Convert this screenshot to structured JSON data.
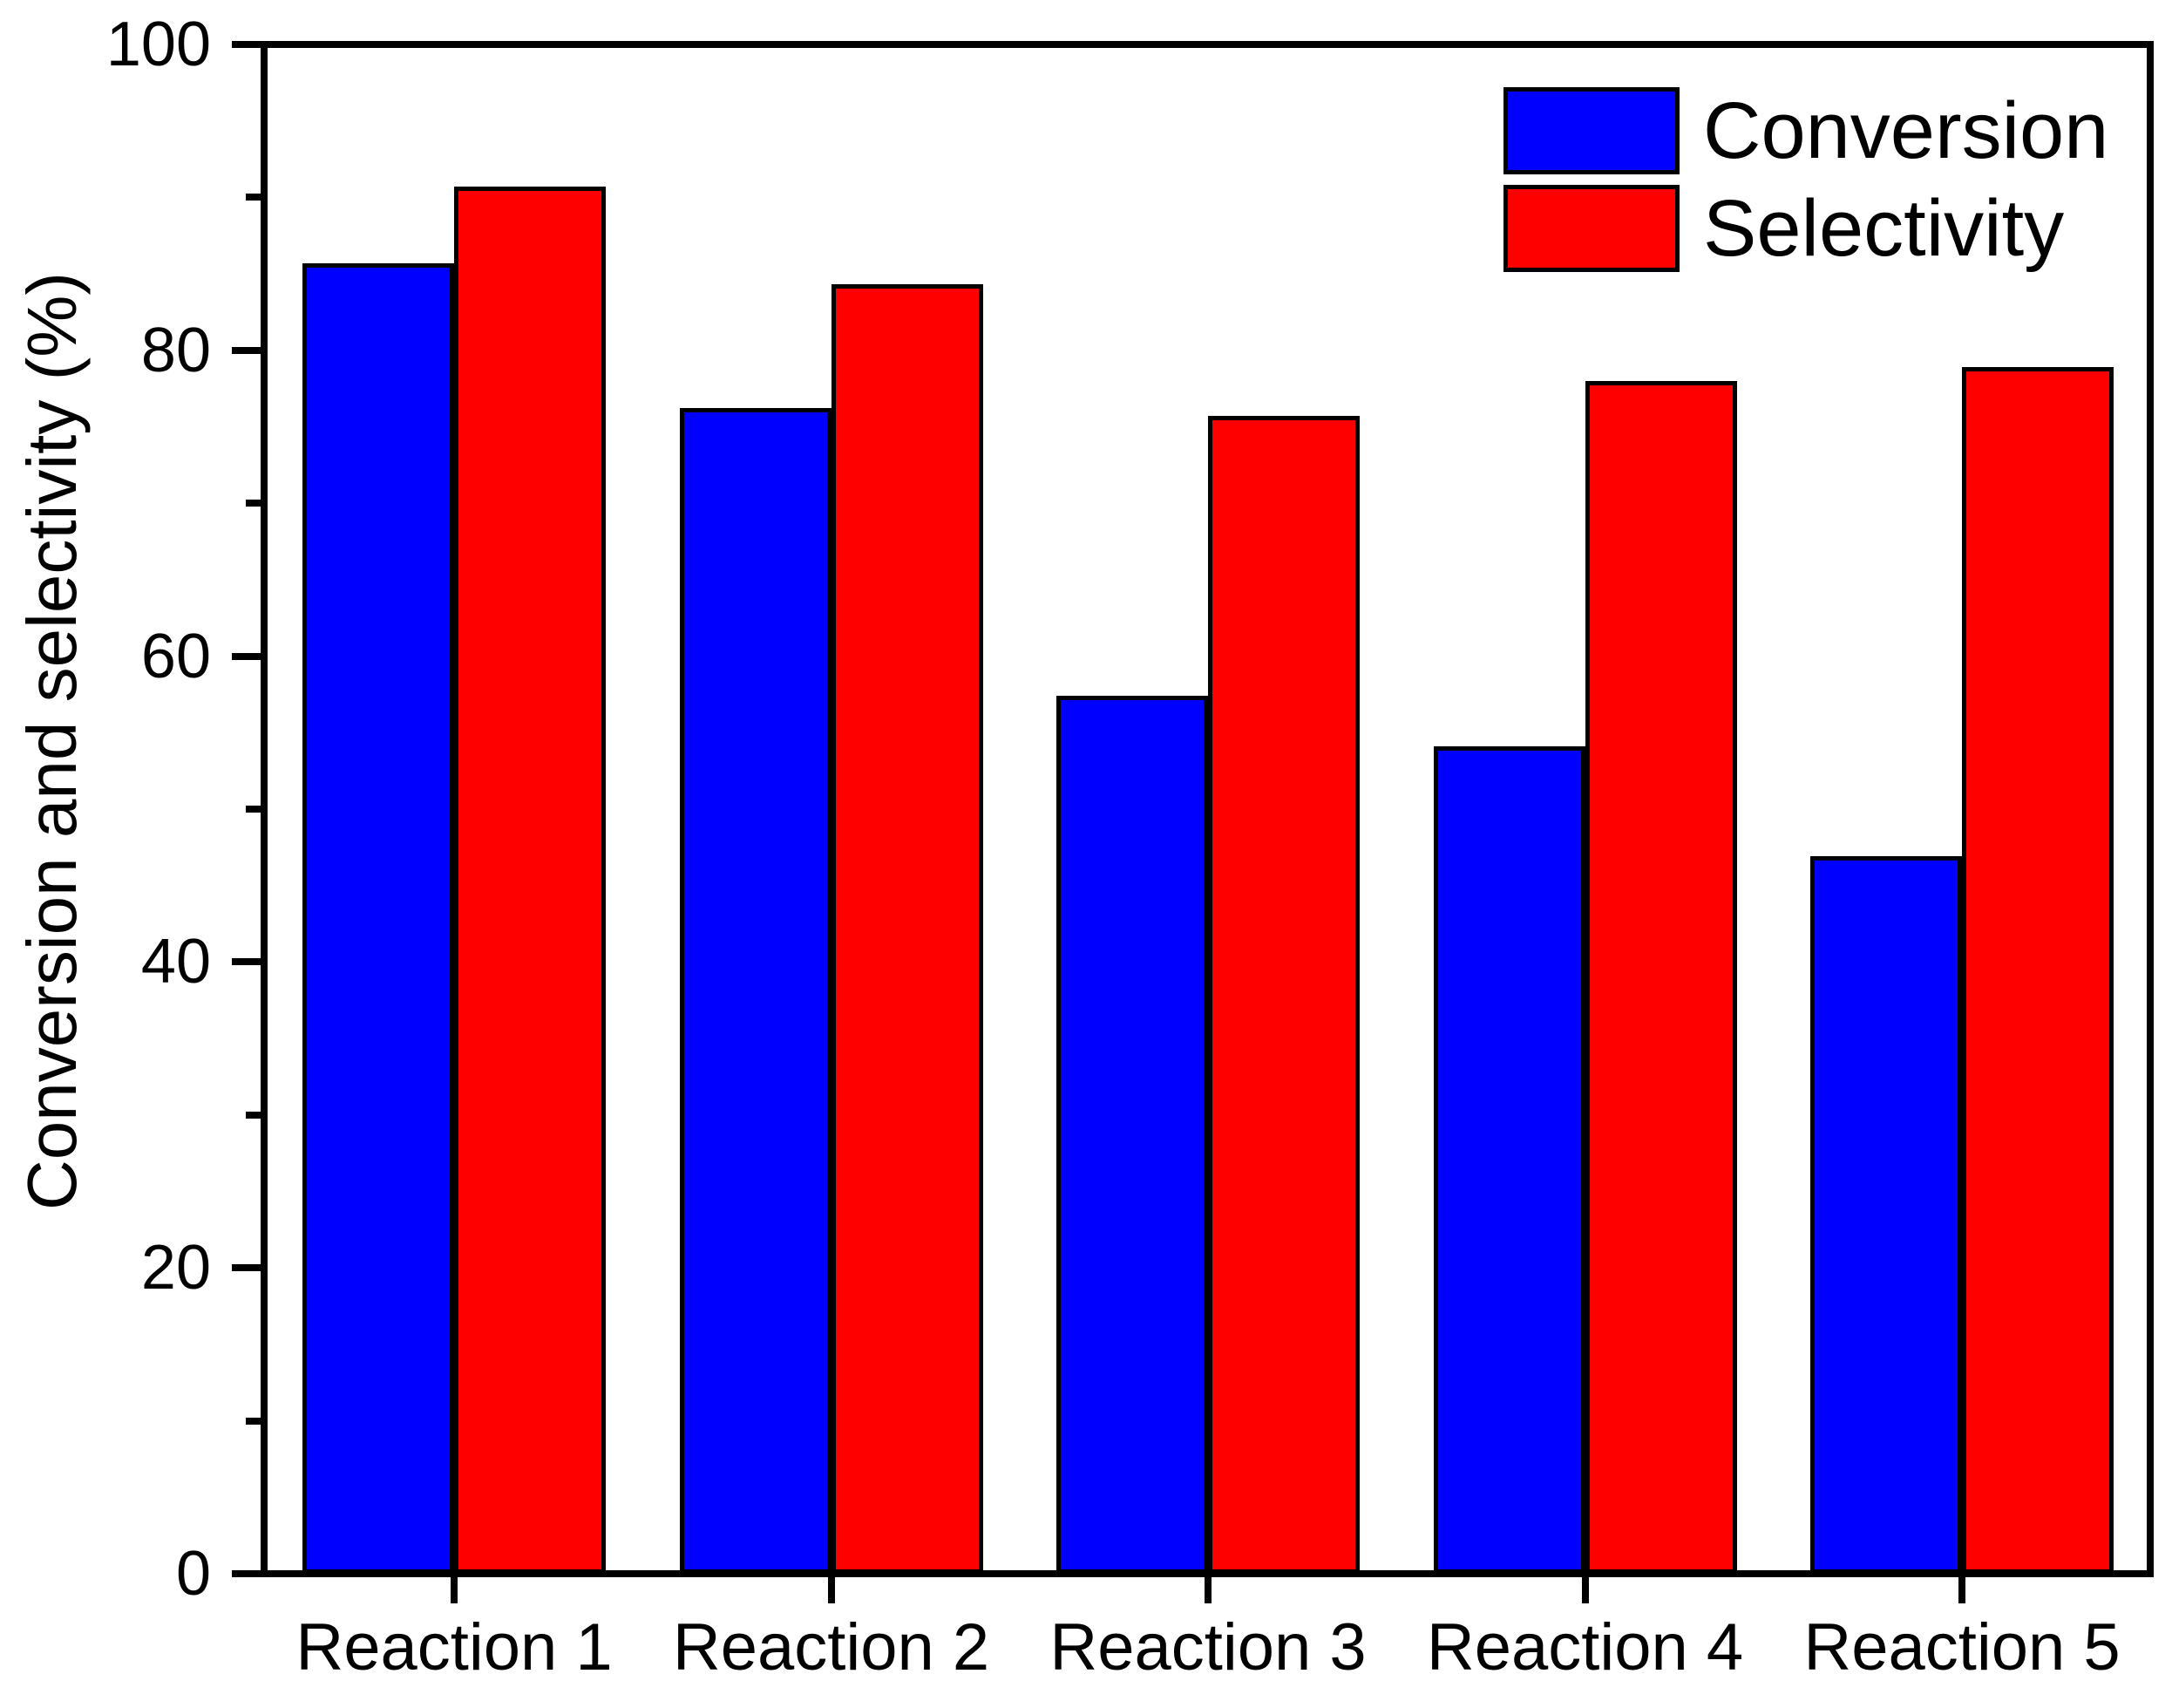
{
  "chart_data": {
    "type": "bar",
    "title": "",
    "categories": [
      "Reaction 1",
      "Reaction 2",
      "Reaction 3",
      "Reaction 4",
      "Reaction 5"
    ],
    "series": [
      {
        "name": "Conversion",
        "color": "#0000ff",
        "values": [
          85.7,
          76.2,
          57.4,
          54.1,
          46.9
        ]
      },
      {
        "name": "Selectivity",
        "color": "#ff0000",
        "values": [
          90.7,
          84.3,
          75.7,
          78.0,
          78.9
        ]
      }
    ],
    "xlabel": "",
    "ylabel": "Conversion and selectivity (%)",
    "ylim": [
      0,
      100
    ],
    "y_major_ticks": [
      0,
      20,
      40,
      60,
      80,
      100
    ],
    "y_minor_step": 10,
    "grid": false,
    "legend_position": "top-right",
    "bar_edge_color": "#000000",
    "background_color": "#ffffff"
  }
}
